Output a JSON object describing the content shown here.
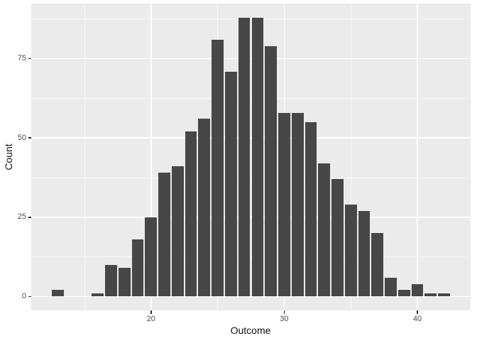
{
  "chart_data": {
    "type": "bar",
    "subtype": "histogram",
    "title": "",
    "xlabel": "Outcome",
    "ylabel": "Count",
    "binwidth": 1,
    "x": [
      13,
      14,
      15,
      16,
      17,
      18,
      19,
      20,
      21,
      22,
      23,
      24,
      25,
      26,
      27,
      28,
      29,
      30,
      31,
      32,
      33,
      34,
      35,
      36,
      37,
      38,
      39,
      40,
      41,
      42
    ],
    "counts": [
      2,
      0,
      0,
      1,
      10,
      9,
      18,
      25,
      39,
      41,
      52,
      56,
      81,
      71,
      88,
      88,
      79,
      58,
      58,
      55,
      42,
      37,
      29,
      27,
      20,
      6,
      2,
      4,
      1,
      1
    ],
    "xticks": [
      20,
      30,
      40
    ],
    "yticks": [
      0,
      25,
      50,
      75
    ],
    "xticks_minor": [
      15,
      25,
      35
    ],
    "yticks_minor": [
      12.5,
      37.5,
      62.5,
      87.5
    ],
    "xlim": [
      11,
      44
    ],
    "ylim": [
      -4.4,
      92.4
    ],
    "legend_position": "none",
    "grid": "on",
    "colors": {
      "bar": "#474747",
      "panel_background": "#EBEBEB",
      "grid_major": "#FFFFFF",
      "grid_minor": "#F3F3F3",
      "tick_text": "#4D4D4D",
      "axis_title_text": "#111111",
      "tick_mark": "#333333",
      "page_background": "#FFFFFF"
    }
  }
}
